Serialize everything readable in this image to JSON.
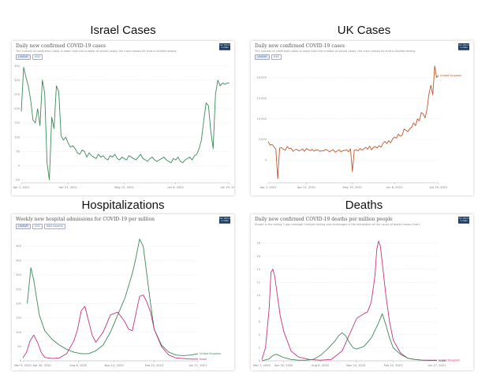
{
  "chart_data": [
    {
      "type": "line",
      "heading": "Israel Cases",
      "title": "Daily new confirmed COVID-19 cases",
      "subtitle": "The number of confirmed cases is lower than the number of actual cases; the main reason for that is limited testing.",
      "tabs": [
        "LINEAR",
        "LOG"
      ],
      "logo": "Our World in Data",
      "yticks": [
        -50,
        0,
        50,
        100,
        150,
        200,
        250,
        300,
        350
      ],
      "ylim": [
        -60,
        360
      ],
      "xlim": [
        0,
        89
      ],
      "xticks": [
        {
          "pos": 0,
          "label": "Apr 1, 2021"
        },
        {
          "pos": 20,
          "label": "Apr 21, 2021"
        },
        {
          "pos": 44,
          "label": "May 15, 2021"
        },
        {
          "pos": 66,
          "label": "Jun 6, 2021"
        },
        {
          "pos": 89,
          "label": "Jun 29, 2021"
        }
      ],
      "series": [
        {
          "name": "",
          "color": "#3c8a58",
          "x": [
            0,
            1,
            2,
            3,
            4,
            5,
            6,
            7,
            8,
            9,
            10,
            11,
            12,
            13,
            14,
            15,
            16,
            17,
            18,
            19,
            20,
            21,
            22,
            23,
            24,
            25,
            26,
            27,
            28,
            29,
            30,
            31,
            32,
            33,
            34,
            35,
            36,
            37,
            38,
            39,
            40,
            41,
            42,
            43,
            44,
            45,
            46,
            47,
            48,
            49,
            50,
            51,
            52,
            53,
            54,
            55,
            56,
            57,
            58,
            59,
            60,
            61,
            62,
            63,
            64,
            65,
            66,
            67,
            68,
            69,
            70,
            71,
            72,
            73,
            74,
            75,
            76,
            77,
            78,
            79,
            80,
            81,
            82,
            83,
            84,
            85,
            86,
            87,
            88,
            89
          ],
          "values": [
            190,
            345,
            310,
            280,
            230,
            160,
            150,
            200,
            140,
            300,
            255,
            10,
            -50,
            170,
            130,
            280,
            260,
            105,
            90,
            100,
            80,
            65,
            70,
            60,
            45,
            40,
            55,
            50,
            30,
            45,
            35,
            30,
            25,
            40,
            30,
            35,
            25,
            20,
            35,
            30,
            40,
            25,
            20,
            30,
            25,
            20,
            35,
            30,
            25,
            20,
            30,
            40,
            25,
            20,
            15,
            25,
            30,
            20,
            15,
            20,
            25,
            30,
            20,
            15,
            10,
            25,
            20,
            30,
            15,
            10,
            20,
            25,
            30,
            20,
            35,
            40,
            60,
            90,
            160,
            220,
            210,
            120,
            60,
            250,
            300,
            280,
            290,
            285,
            290,
            290
          ]
        }
      ]
    },
    {
      "type": "line",
      "heading": "UK Cases",
      "title": "Daily new confirmed COVID-19 cases",
      "subtitle": "The number of confirmed cases is lower than the number of actual cases; the main reason for that is limited testing.",
      "tabs": [
        "LINEAR",
        "LOG"
      ],
      "logo": "Our World in Data",
      "yticks": [
        0,
        5000,
        10000,
        15000,
        20000
      ],
      "yticklabels": [
        "0",
        "5,000",
        "10,000",
        "15,000",
        "20,000"
      ],
      "ylim": [
        -5500,
        23500
      ],
      "xlim": [
        0,
        89
      ],
      "xticks": [
        {
          "pos": 0,
          "label": "Apr 1, 2021"
        },
        {
          "pos": 20,
          "label": "Apr 21, 2021"
        },
        {
          "pos": 44,
          "label": "May 15, 2021"
        },
        {
          "pos": 66,
          "label": "Jun 6, 2021"
        },
        {
          "pos": 89,
          "label": "Jun 29, 2021"
        }
      ],
      "series": [
        {
          "name": "United Kingdom",
          "color": "#c0562f",
          "x": [
            0,
            1,
            2,
            3,
            4,
            5,
            6,
            7,
            8,
            9,
            10,
            11,
            12,
            13,
            14,
            15,
            16,
            17,
            18,
            19,
            20,
            21,
            22,
            23,
            24,
            25,
            26,
            27,
            28,
            29,
            30,
            31,
            32,
            33,
            34,
            35,
            36,
            37,
            38,
            39,
            40,
            41,
            42,
            43,
            44,
            45,
            46,
            47,
            48,
            49,
            50,
            51,
            52,
            53,
            54,
            55,
            56,
            57,
            58,
            59,
            60,
            61,
            62,
            63,
            64,
            65,
            66,
            67,
            68,
            69,
            70,
            71,
            72,
            73,
            74,
            75,
            76,
            77,
            78,
            79,
            80,
            81,
            82,
            83,
            84,
            85,
            86,
            87,
            88,
            89
          ],
          "values": [
            4500,
            3600,
            3800,
            3200,
            2700,
            -4500,
            2900,
            3000,
            2600,
            2400,
            3300,
            2700,
            2900,
            2100,
            2500,
            2600,
            2200,
            2400,
            2700,
            2100,
            2800,
            2500,
            2300,
            2600,
            2200,
            2400,
            2500,
            2100,
            2300,
            2200,
            2600,
            2400,
            2000,
            2300,
            2500,
            1900,
            2200,
            2500,
            2000,
            2300,
            2300,
            2500,
            2000,
            2700,
            -2800,
            2400,
            2500,
            2200,
            2800,
            2400,
            2700,
            3100,
            2600,
            3400,
            2500,
            3100,
            3300,
            2900,
            3500,
            3100,
            4100,
            4500,
            4000,
            4700,
            4200,
            5100,
            5600,
            5300,
            6300,
            5800,
            6000,
            7500,
            7200,
            6900,
            7600,
            8000,
            9000,
            8300,
            10000,
            9500,
            11500,
            11200,
            10200,
            12400,
            16000,
            18100,
            15800,
            22800,
            20000,
            20500
          ]
        }
      ]
    },
    {
      "type": "line",
      "heading": "Hospitalizations",
      "title": "Weekly new hospital admissions for COVID-19 per million",
      "tabs": [
        "LINEAR",
        "LOG",
        "Add country"
      ],
      "logo": "Our World in Data",
      "yticks": [
        0,
        50,
        100,
        150,
        200,
        250,
        300,
        350,
        400
      ],
      "ylim": [
        0,
        440
      ],
      "xlim": [
        0,
        480
      ],
      "xticks": [
        {
          "pos": 0,
          "label": "Mar 9, 2020"
        },
        {
          "pos": 52,
          "label": "Apr 30, 2020"
        },
        {
          "pos": 152,
          "label": "Aug 8, 2020"
        },
        {
          "pos": 250,
          "label": "Nov 14, 2020"
        },
        {
          "pos": 360,
          "label": "Feb 23, 2021"
        },
        {
          "pos": 480,
          "label": "Jun 27, 2021"
        }
      ],
      "series": [
        {
          "name": "United Kingdom",
          "color": "#3c8a58",
          "x": [
            12,
            22,
            30,
            45,
            60,
            80,
            100,
            120,
            140,
            160,
            180,
            200,
            220,
            240,
            260,
            280,
            300,
            310,
            320,
            330,
            340,
            350,
            360,
            380,
            400,
            420,
            440,
            460,
            480
          ],
          "values": [
            200,
            325,
            280,
            160,
            105,
            75,
            55,
            40,
            30,
            25,
            25,
            35,
            55,
            100,
            160,
            220,
            305,
            360,
            425,
            400,
            300,
            200,
            110,
            55,
            30,
            20,
            18,
            20,
            25
          ]
        },
        {
          "name": "Israel",
          "color": "#c2357f",
          "x": [
            0,
            10,
            20,
            30,
            40,
            50,
            60,
            80,
            100,
            120,
            140,
            150,
            160,
            170,
            180,
            190,
            200,
            220,
            240,
            260,
            280,
            290,
            300,
            310,
            320,
            330,
            340,
            350,
            360,
            380,
            400,
            420,
            440,
            460,
            480
          ],
          "values": [
            10,
            30,
            70,
            90,
            65,
            30,
            12,
            8,
            10,
            25,
            70,
            110,
            175,
            190,
            140,
            90,
            65,
            100,
            160,
            170,
            135,
            110,
            105,
            165,
            225,
            230,
            205,
            170,
            110,
            50,
            20,
            10,
            8,
            6,
            6
          ]
        }
      ]
    },
    {
      "type": "line",
      "heading": "Deaths",
      "title": "Daily new confirmed COVID-19 deaths per million people",
      "subtitle": "Shown is the rolling 7-day average. Limited testing and challenges in the attribution of the cause of death means that the number of confirmed deaths may not be an accurate count of the true number of deaths from COVID-19.",
      "tabs": [
        "LINEAR",
        "LOG"
      ],
      "logo": "Our World in Data",
      "yticks": [
        0,
        2,
        4,
        6,
        8,
        10,
        12,
        14,
        16,
        18
      ],
      "ylim": [
        0,
        19.5
      ],
      "xlim": [
        0,
        480
      ],
      "xticks": [
        {
          "pos": 0,
          "label": "Mar 1, 2020"
        },
        {
          "pos": 60,
          "label": "Apr 30, 2020"
        },
        {
          "pos": 160,
          "label": "Aug 8, 2020"
        },
        {
          "pos": 258,
          "label": "Nov 14, 2020"
        },
        {
          "pos": 360,
          "label": "Feb 24, 2021"
        },
        {
          "pos": 480,
          "label": "Jun 27, 2021"
        }
      ],
      "series": [
        {
          "name": "United Kingdom",
          "color": "#c2357f",
          "x": [
            0,
            10,
            20,
            25,
            30,
            35,
            40,
            45,
            50,
            60,
            70,
            80,
            100,
            130,
            160,
            190,
            220,
            240,
            260,
            280,
            290,
            300,
            310,
            315,
            320,
            325,
            330,
            340,
            350,
            360,
            380,
            400,
            420,
            440,
            460,
            480
          ],
          "values": [
            0.2,
            2,
            8,
            13.5,
            14,
            13,
            11,
            9,
            7,
            4.5,
            3,
            1.5,
            0.6,
            0.2,
            0.1,
            0.2,
            1.5,
            4,
            6.5,
            7.2,
            7.5,
            9,
            13,
            17,
            18.3,
            17.5,
            15,
            10,
            6,
            3.2,
            1.2,
            0.4,
            0.2,
            0.1,
            0.1,
            0.1
          ]
        },
        {
          "name": "Israel",
          "color": "#3c8a58",
          "x": [
            0,
            20,
            30,
            40,
            60,
            80,
            100,
            120,
            140,
            160,
            180,
            200,
            210,
            220,
            230,
            240,
            250,
            260,
            280,
            300,
            320,
            330,
            340,
            350,
            360,
            380,
            400,
            420,
            440,
            460,
            480
          ],
          "values": [
            0,
            0.3,
            0.8,
            1,
            0.5,
            0.2,
            0.1,
            0.1,
            0.2,
            0.8,
            1.8,
            3,
            3.8,
            4.3,
            3.8,
            2.8,
            2,
            1.8,
            2.2,
            3.5,
            5.8,
            7.2,
            5.5,
            3.5,
            2,
            1,
            0.4,
            0.2,
            0.1,
            0.05,
            0.05
          ]
        }
      ]
    }
  ]
}
